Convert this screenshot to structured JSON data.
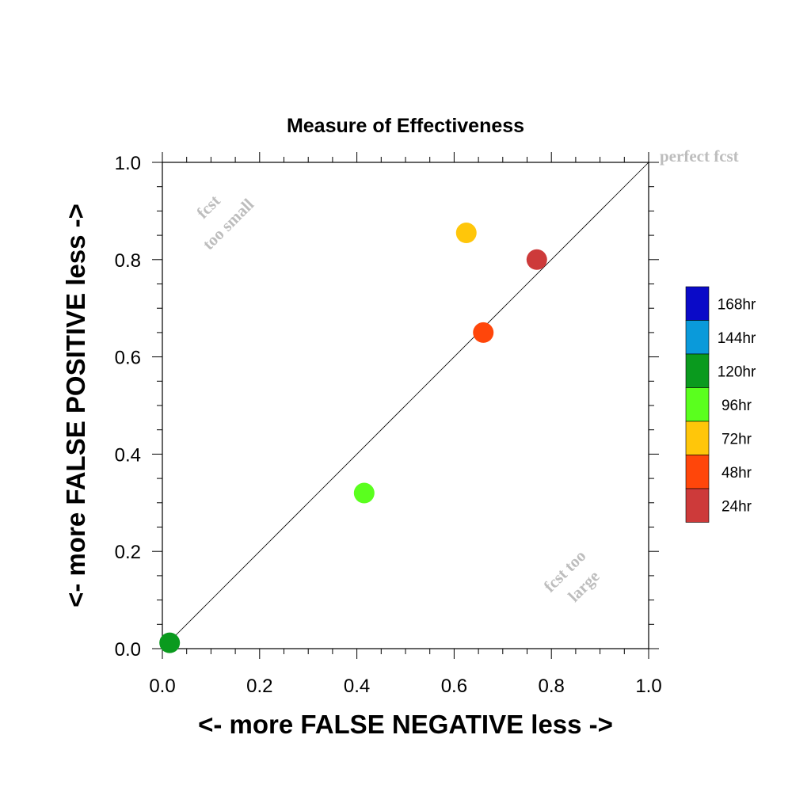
{
  "chart_data": {
    "type": "scatter",
    "title": "Measure of Effectiveness",
    "xlabel": "<- more   FALSE NEGATIVE   less ->",
    "ylabel": "<- more   FALSE POSITIVE   less ->",
    "xlim": [
      0,
      1
    ],
    "ylim": [
      0,
      1
    ],
    "x_ticks": [
      "0.0",
      "0.2",
      "0.4",
      "0.6",
      "0.8",
      "1.0"
    ],
    "y_ticks": [
      "0.0",
      "0.2",
      "0.4",
      "0.6",
      "0.8",
      "1.0"
    ],
    "reference_line": {
      "from": [
        0,
        0
      ],
      "to": [
        1,
        1
      ]
    },
    "annotations": {
      "perfect": "perfect fcst",
      "small_line1": "fcst",
      "small_line2": "too small",
      "large_line1": "fcst too",
      "large_line2": "large"
    },
    "legend": [
      {
        "label": "168hr",
        "color": "#0a0ac8"
      },
      {
        "label": "144hr",
        "color": "#0a9ada"
      },
      {
        "label": "120hr",
        "color": "#0a9a1e"
      },
      {
        "label": "96hr",
        "color": "#5aff1e"
      },
      {
        "label": "72hr",
        "color": "#ffc60a"
      },
      {
        "label": "48hr",
        "color": "#ff460a"
      },
      {
        "label": "24hr",
        "color": "#cd3a3a"
      }
    ],
    "points": [
      {
        "label": "24hr",
        "x": 0.77,
        "y": 0.8,
        "color": "#cd3a3a"
      },
      {
        "label": "48hr",
        "x": 0.66,
        "y": 0.65,
        "color": "#ff460a"
      },
      {
        "label": "72hr",
        "x": 0.625,
        "y": 0.855,
        "color": "#ffc60a"
      },
      {
        "label": "96hr",
        "x": 0.415,
        "y": 0.32,
        "color": "#5aff1e"
      },
      {
        "label": "120hr",
        "x": 0.015,
        "y": 0.012,
        "color": "#0a9a1e"
      }
    ]
  }
}
